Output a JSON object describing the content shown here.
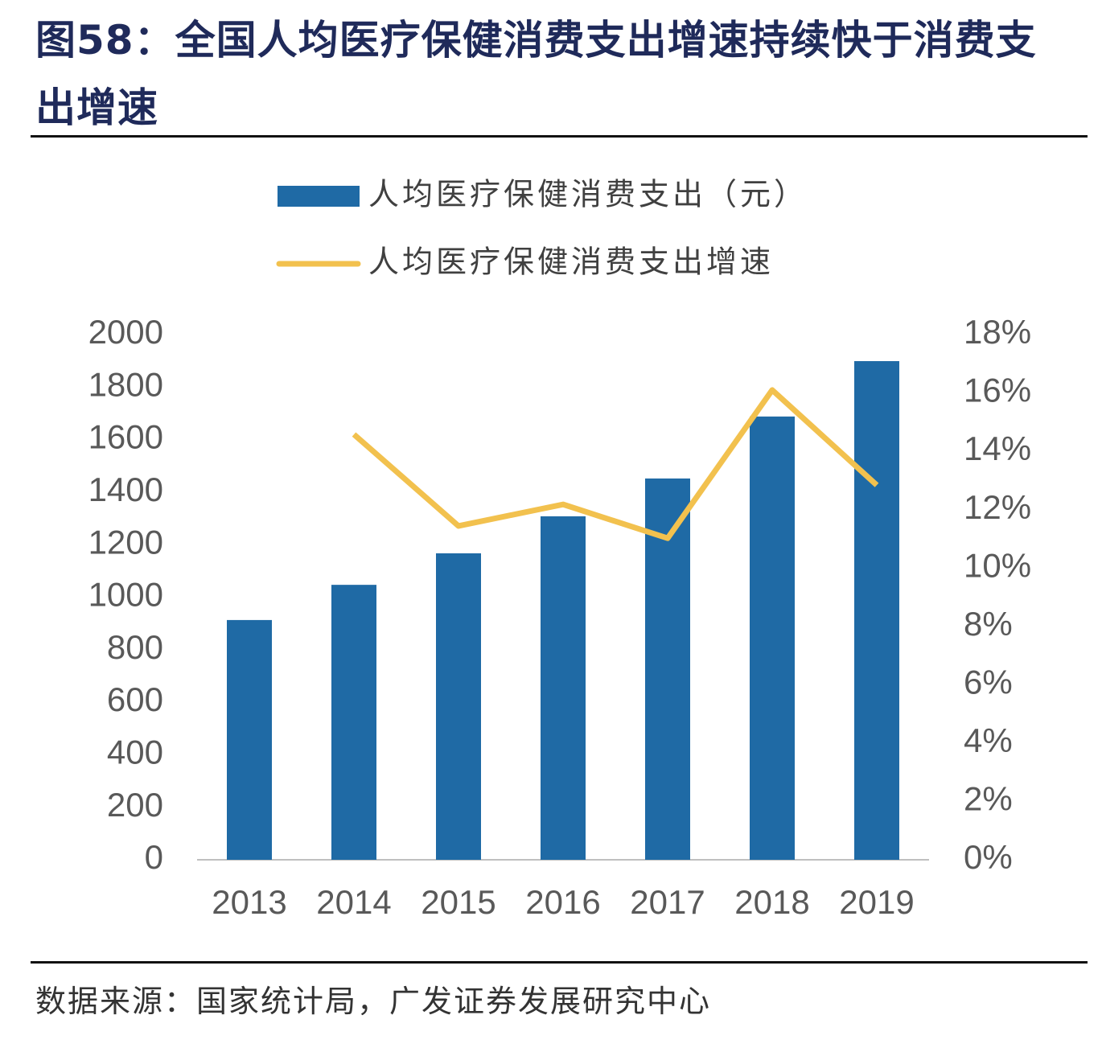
{
  "chart_data": {
    "type": "bar",
    "title": "图58：全国人均医疗保健消费支出增速持续快于消费支出增速",
    "source": "数据来源：国家统计局，广发证券发展研究中心",
    "categories": [
      "2013",
      "2014",
      "2015",
      "2016",
      "2017",
      "2018",
      "2019"
    ],
    "series": [
      {
        "name": "人均医疗保健消费支出（元）",
        "type": "bar",
        "color": "#1f6aa5",
        "values": [
          913,
          1047,
          1167,
          1308,
          1452,
          1688,
          1899
        ]
      },
      {
        "name": "人均医疗保健消费支出增速",
        "type": "line",
        "axis": "y2",
        "color": "#f2c14e",
        "values": [
          null,
          14.58,
          11.44,
          12.18,
          11.02,
          16.1,
          12.84
        ]
      }
    ],
    "ylim": [
      0,
      2000
    ],
    "yticks": [
      0,
      200,
      400,
      600,
      800,
      1000,
      1200,
      1400,
      1600,
      1800,
      2000
    ],
    "y2lim": [
      0,
      18
    ],
    "y2ticks": [
      {
        "value": 0,
        "label": "0%"
      },
      {
        "value": 2,
        "label": "2%"
      },
      {
        "value": 4,
        "label": "4%"
      },
      {
        "value": 6,
        "label": "6%"
      },
      {
        "value": 8,
        "label": "8%"
      },
      {
        "value": 10,
        "label": "10%"
      },
      {
        "value": 12,
        "label": "12%"
      },
      {
        "value": 14,
        "label": "14%"
      },
      {
        "value": 16,
        "label": "16%"
      },
      {
        "value": 18,
        "label": "18%"
      }
    ],
    "grid": false
  }
}
